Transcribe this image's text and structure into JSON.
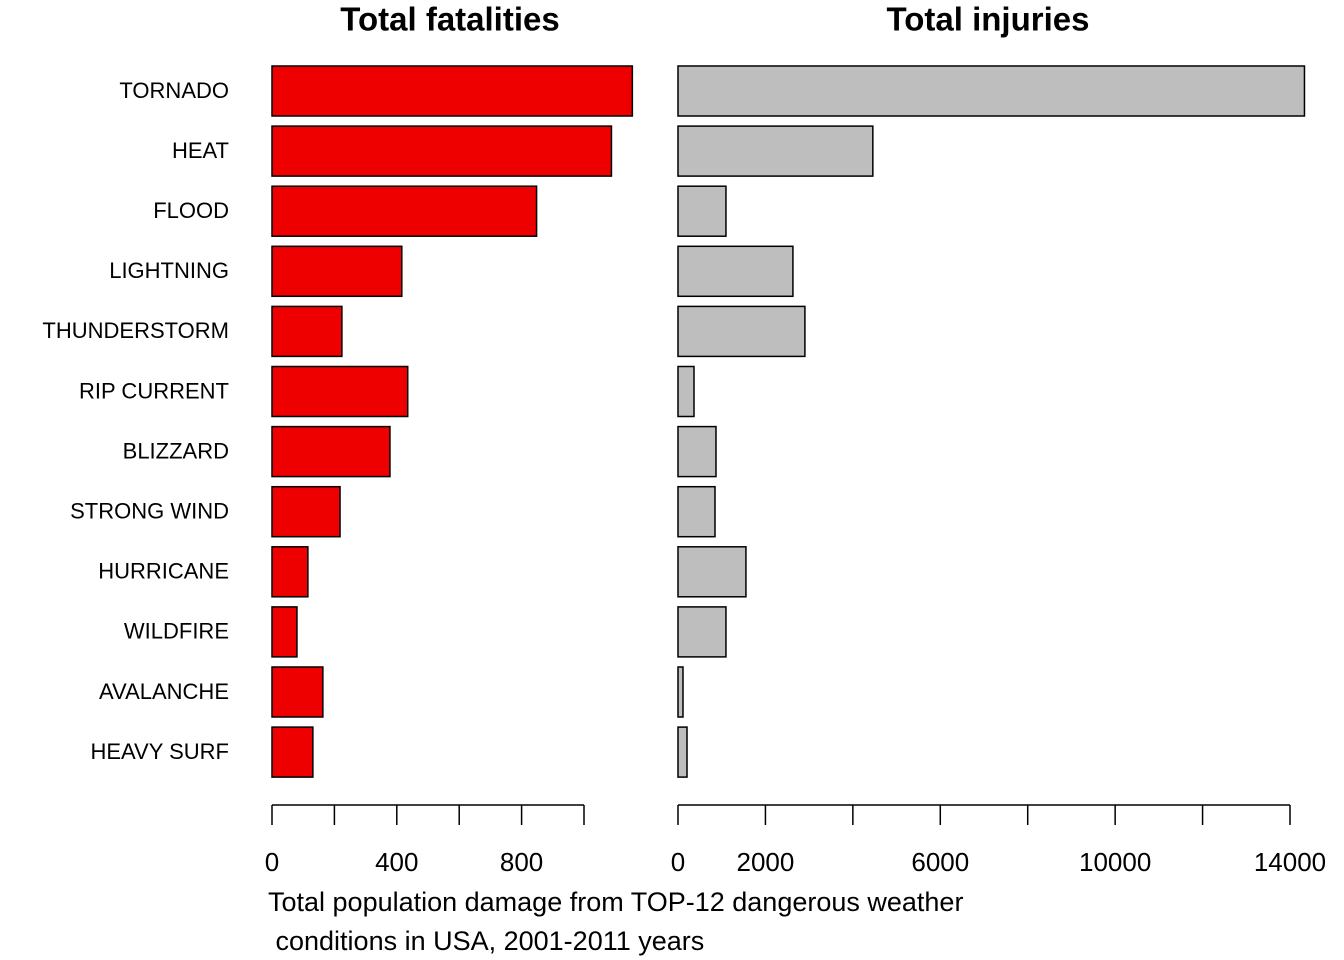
{
  "chart_data": {
    "type": "bar",
    "orientation": "horizontal",
    "categories": [
      "TORNADO",
      "HEAT",
      "FLOOD",
      "LIGHTNING",
      "THUNDERSTORM",
      "RIP CURRENT",
      "BLIZZARD",
      "STRONG WIND",
      "HURRICANE",
      "WILDFIRE",
      "AVALANCHE",
      "HEAVY SURF"
    ],
    "panels": [
      {
        "title": "Total fatalities",
        "color": "#ee0000",
        "values": [
          1155,
          1088,
          848,
          416,
          224,
          435,
          378,
          218,
          115,
          80,
          163,
          131
        ],
        "xlim": [
          0,
          1000
        ],
        "xticks": [
          0,
          400,
          800
        ],
        "xminor_ticks": [
          200,
          600,
          1000
        ]
      },
      {
        "title": "Total injuries",
        "color": "#bebebe",
        "values": [
          14331,
          4457,
          1097,
          2629,
          2903,
          366,
          869,
          846,
          1554,
          1097,
          114,
          206
        ],
        "xlim": [
          0,
          14000
        ],
        "xticks": [
          0,
          2000,
          6000,
          10000,
          14000
        ],
        "xminor_ticks": [
          4000,
          8000,
          12000
        ]
      }
    ],
    "caption": [
      "Total population damage from TOP-12 dangerous weather",
      " conditions in USA, 2001-2011 years"
    ]
  }
}
